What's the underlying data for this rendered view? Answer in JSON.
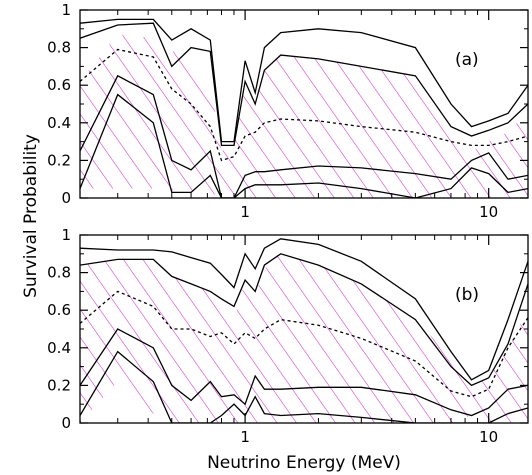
{
  "ylabel": "Survival Probability",
  "xlabel": "Neutrino Energy (MeV)",
  "colors": {
    "hatch": "#cc33cc",
    "line": "#000000"
  },
  "chart_data": [
    {
      "type": "area",
      "panel_label": "(a)",
      "xscale": "log",
      "xlim": [
        0.21,
        14.5
      ],
      "ylim": [
        0,
        1
      ],
      "x_ticks": [
        1,
        10
      ],
      "y_ticks": [
        0,
        0.2,
        0.4,
        0.6,
        0.8,
        1
      ],
      "hatched_band": {
        "x": [
          0.21,
          0.3,
          0.42,
          0.5,
          0.6,
          0.72,
          0.8,
          0.9,
          1.0,
          1.1,
          1.2,
          1.4,
          2.0,
          3.0,
          5.0,
          7.0,
          8.5,
          10,
          12,
          14.5
        ],
        "upper": [
          0.62,
          0.87,
          0.85,
          0.78,
          0.78,
          0.62,
          0.25,
          0.28,
          0.6,
          0.48,
          0.68,
          0.76,
          0.74,
          0.7,
          0.65,
          0.38,
          0.25,
          0.3,
          0.35,
          0.46
        ],
        "lower": [
          0.05,
          0.05,
          0.05,
          0.04,
          0.04,
          0.03,
          0.0,
          0.0,
          0.0,
          0.0,
          0.0,
          0.0,
          0.0,
          0.0,
          0.0,
          0.0,
          0.0,
          0.0,
          0.0,
          0.0
        ]
      },
      "series": [
        {
          "style": "solid",
          "x": [
            0.21,
            0.3,
            0.42,
            0.5,
            0.6,
            0.72,
            0.8,
            0.9,
            1.0,
            1.1,
            1.2,
            1.4,
            2.0,
            3.0,
            5.0,
            7.0,
            8.5,
            10,
            12,
            14.5
          ],
          "y": [
            0.93,
            0.95,
            0.95,
            0.84,
            0.9,
            0.84,
            0.3,
            0.3,
            0.73,
            0.56,
            0.8,
            0.88,
            0.9,
            0.88,
            0.8,
            0.5,
            0.38,
            0.41,
            0.45,
            0.6
          ]
        },
        {
          "style": "solid",
          "x": [
            0.21,
            0.3,
            0.42,
            0.5,
            0.6,
            0.72,
            0.8,
            0.9,
            1.0,
            1.1,
            1.2,
            1.4,
            2.0,
            3.0,
            5.0,
            7.0,
            8.5,
            10,
            12,
            14.5
          ],
          "y": [
            0.85,
            0.92,
            0.93,
            0.7,
            0.8,
            0.78,
            0.28,
            0.28,
            0.62,
            0.5,
            0.68,
            0.76,
            0.74,
            0.7,
            0.65,
            0.38,
            0.33,
            0.36,
            0.4,
            0.5
          ]
        },
        {
          "style": "dashed",
          "x": [
            0.21,
            0.3,
            0.42,
            0.5,
            0.6,
            0.72,
            0.8,
            0.9,
            1.0,
            1.1,
            1.2,
            1.4,
            2.0,
            3.0,
            5.0,
            7.0,
            8.5,
            10,
            12,
            14.5
          ],
          "y": [
            0.62,
            0.79,
            0.75,
            0.58,
            0.5,
            0.38,
            0.2,
            0.22,
            0.33,
            0.35,
            0.4,
            0.42,
            0.41,
            0.38,
            0.35,
            0.3,
            0.28,
            0.28,
            0.3,
            0.33
          ]
        },
        {
          "style": "solid",
          "x": [
            0.21,
            0.3,
            0.42,
            0.5,
            0.6,
            0.72,
            0.8,
            0.9,
            1.0,
            1.1,
            1.2,
            1.4,
            2.0,
            3.0,
            5.0,
            7.0,
            8.5,
            10,
            12,
            14.5
          ],
          "y": [
            0.25,
            0.65,
            0.55,
            0.2,
            0.15,
            0.25,
            0.0,
            0.0,
            0.12,
            0.14,
            0.14,
            0.15,
            0.17,
            0.16,
            0.13,
            0.1,
            0.2,
            0.24,
            0.1,
            0.12
          ]
        },
        {
          "style": "solid",
          "x": [
            0.21,
            0.3,
            0.42,
            0.5,
            0.6,
            0.72,
            0.8,
            0.9,
            1.0,
            1.1,
            1.2,
            1.4,
            2.0,
            3.0,
            5.0,
            7.0,
            8.5,
            10,
            12,
            14.5
          ],
          "y": [
            0.05,
            0.55,
            0.4,
            0.03,
            0.03,
            0.12,
            0.0,
            0.0,
            0.05,
            0.07,
            0.07,
            0.07,
            0.08,
            0.05,
            0.0,
            0.05,
            0.16,
            0.13,
            0.03,
            0.05
          ]
        }
      ]
    },
    {
      "type": "area",
      "panel_label": "(b)",
      "xscale": "log",
      "xlim": [
        0.21,
        14.5
      ],
      "ylim": [
        0,
        1
      ],
      "x_ticks": [
        1,
        10
      ],
      "y_ticks": [
        0,
        0.2,
        0.4,
        0.6,
        0.8,
        1
      ],
      "hatched_band": {
        "x": [
          0.21,
          0.3,
          0.42,
          0.5,
          0.6,
          0.72,
          0.8,
          0.9,
          1.0,
          1.1,
          1.2,
          1.4,
          2.0,
          3.0,
          5.0,
          7.0,
          8.5,
          10,
          12,
          14.5
        ],
        "upper": [
          0.84,
          0.87,
          0.87,
          0.78,
          0.74,
          0.7,
          0.66,
          0.55,
          0.76,
          0.68,
          0.82,
          0.9,
          0.84,
          0.74,
          0.55,
          0.35,
          0.2,
          0.24,
          0.4,
          0.6
        ],
        "lower": [
          0.0,
          0.22,
          0.05,
          0.0,
          0.0,
          0.0,
          0.0,
          0.0,
          0.0,
          0.0,
          0.0,
          0.0,
          0.0,
          0.0,
          0.0,
          0.0,
          0.04,
          0.0,
          0.0,
          0.0
        ]
      },
      "series": [
        {
          "style": "solid",
          "x": [
            0.21,
            0.3,
            0.42,
            0.5,
            0.6,
            0.72,
            0.8,
            0.9,
            1.0,
            1.1,
            1.2,
            1.4,
            2.0,
            3.0,
            5.0,
            7.0,
            8.5,
            10,
            12,
            14.5
          ],
          "y": [
            0.93,
            0.92,
            0.92,
            0.91,
            0.88,
            0.85,
            0.79,
            0.72,
            0.9,
            0.82,
            0.93,
            0.98,
            0.95,
            0.86,
            0.66,
            0.38,
            0.23,
            0.28,
            0.55,
            0.86
          ]
        },
        {
          "style": "solid",
          "x": [
            0.21,
            0.3,
            0.42,
            0.5,
            0.6,
            0.72,
            0.8,
            0.9,
            1.0,
            1.1,
            1.2,
            1.4,
            2.0,
            3.0,
            5.0,
            7.0,
            8.5,
            10,
            12,
            14.5
          ],
          "y": [
            0.84,
            0.87,
            0.87,
            0.78,
            0.74,
            0.7,
            0.66,
            0.62,
            0.76,
            0.7,
            0.84,
            0.9,
            0.84,
            0.74,
            0.55,
            0.3,
            0.2,
            0.24,
            0.42,
            0.74
          ]
        },
        {
          "style": "dashed",
          "x": [
            0.21,
            0.3,
            0.42,
            0.5,
            0.6,
            0.72,
            0.8,
            0.9,
            1.0,
            1.1,
            1.2,
            1.4,
            2.0,
            3.0,
            5.0,
            7.0,
            8.5,
            10,
            12,
            14.5
          ],
          "y": [
            0.53,
            0.7,
            0.62,
            0.5,
            0.5,
            0.46,
            0.48,
            0.42,
            0.48,
            0.45,
            0.5,
            0.55,
            0.52,
            0.45,
            0.33,
            0.17,
            0.14,
            0.18,
            0.4,
            0.56
          ]
        },
        {
          "style": "solid",
          "x": [
            0.21,
            0.3,
            0.42,
            0.5,
            0.6,
            0.72,
            0.8,
            0.9,
            1.0,
            1.1,
            1.2,
            1.4,
            2.0,
            3.0,
            5.0,
            7.0,
            8.5,
            10,
            12,
            14.5
          ],
          "y": [
            0.2,
            0.5,
            0.4,
            0.2,
            0.12,
            0.22,
            0.14,
            0.15,
            0.1,
            0.25,
            0.18,
            0.18,
            0.19,
            0.19,
            0.15,
            0.07,
            0.04,
            0.08,
            0.18,
            0.2
          ]
        },
        {
          "style": "solid",
          "x": [
            0.21,
            0.3,
            0.42,
            0.5,
            0.6,
            0.72,
            0.8,
            0.9,
            1.0,
            1.1,
            1.2,
            1.4,
            2.0,
            3.0,
            5.0,
            7.0,
            8.5,
            10,
            12,
            14.5
          ],
          "y": [
            0.04,
            0.38,
            0.22,
            0.0,
            0.0,
            0.0,
            0.04,
            0.1,
            0.04,
            0.14,
            0.05,
            0.04,
            0.05,
            0.03,
            0.0,
            0.0,
            0.0,
            0.0,
            0.05,
            0.08
          ]
        }
      ]
    }
  ]
}
